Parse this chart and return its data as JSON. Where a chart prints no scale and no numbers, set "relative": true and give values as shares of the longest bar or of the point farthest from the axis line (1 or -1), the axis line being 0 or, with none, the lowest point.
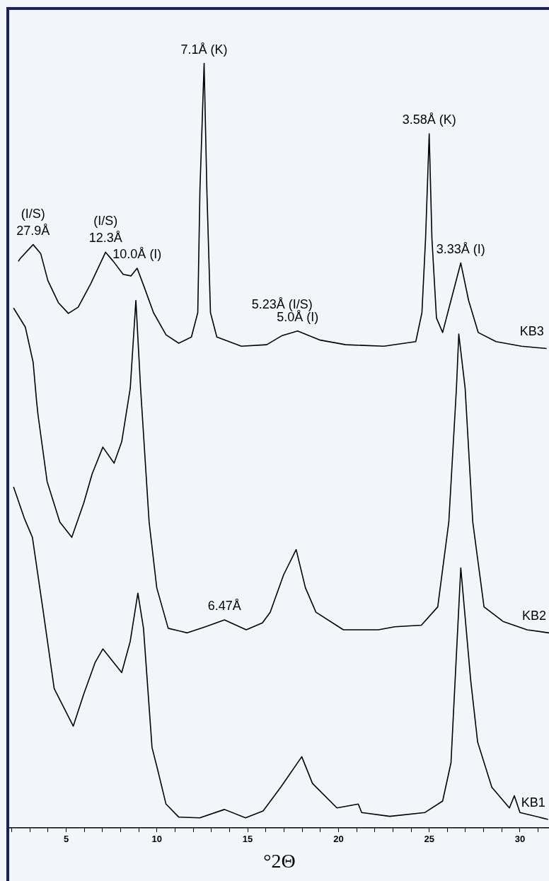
{
  "chart_data": {
    "type": "line",
    "relative": true,
    "xlabel": "°2Θ",
    "xlim": [
      1.9,
      31.6
    ],
    "xticks": [
      {
        "value": 2,
        "label": null
      },
      {
        "value": 3,
        "label": null
      },
      {
        "value": 4,
        "label": null
      },
      5,
      {
        "value": 6,
        "label": null
      },
      {
        "value": 7,
        "label": null
      },
      {
        "value": 8,
        "label": null
      },
      {
        "value": 9,
        "label": null
      },
      10,
      {
        "value": 11,
        "label": null
      },
      {
        "value": 12,
        "label": null
      },
      {
        "value": 13,
        "label": null
      },
      {
        "value": 14,
        "label": null
      },
      15,
      {
        "value": 16,
        "label": null
      },
      {
        "value": 17,
        "label": null
      },
      {
        "value": 18,
        "label": null
      },
      {
        "value": 19,
        "label": null
      },
      20,
      {
        "value": 21,
        "label": null
      },
      {
        "value": 22,
        "label": null
      },
      {
        "value": 23,
        "label": null
      },
      {
        "value": 24,
        "label": null
      },
      25,
      {
        "value": 26,
        "label": null
      },
      {
        "value": 27,
        "label": null
      },
      {
        "value": 28,
        "label": null
      },
      {
        "value": 29,
        "label": null
      },
      30,
      {
        "value": 31,
        "label": null
      }
    ],
    "grid": false,
    "legend": false,
    "marker": "none",
    "line_style": "solid",
    "series": [
      {
        "name": "KB3",
        "color": "#000000",
        "x": [
          2.36,
          2.48,
          3.18,
          3.6,
          3.99,
          4.57,
          5.12,
          5.66,
          6.36,
          7.17,
          7.6,
          8.14,
          8.57,
          8.91,
          9.26,
          9.81,
          10.5,
          11.2,
          11.9,
          12.25,
          12.37,
          12.6,
          12.75,
          12.95,
          13.3,
          14.65,
          16.05,
          16.9,
          17.75,
          19.0,
          20.4,
          22.5,
          24.26,
          24.6,
          24.8,
          25.0,
          25.15,
          25.4,
          25.74,
          26.2,
          26.74,
          27.17,
          27.7,
          28.68,
          30.08,
          31.47
        ],
        "values": [
          0.741,
          0.745,
          0.763,
          0.751,
          0.716,
          0.687,
          0.673,
          0.681,
          0.712,
          0.753,
          0.741,
          0.724,
          0.722,
          0.732,
          0.71,
          0.674,
          0.645,
          0.634,
          0.642,
          0.674,
          0.835,
          1.0,
          0.835,
          0.674,
          0.642,
          0.63,
          0.632,
          0.644,
          0.65,
          0.638,
          0.632,
          0.63,
          0.636,
          0.674,
          0.771,
          0.908,
          0.771,
          0.667,
          0.648,
          0.69,
          0.739,
          0.69,
          0.648,
          0.636,
          0.63,
          0.627
        ]
      },
      {
        "name": "KB2",
        "color": "#000000",
        "x": [
          2.1,
          2.75,
          3.18,
          3.37,
          3.45,
          3.95,
          4.65,
          5.31,
          5.97,
          6.43,
          7.02,
          7.64,
          8.06,
          8.53,
          8.84,
          9.1,
          9.57,
          9.99,
          10.62,
          11.67,
          12.67,
          13.72,
          14.92,
          15.81,
          16.24,
          16.98,
          17.67,
          18.18,
          18.76,
          20.27,
          22.2,
          23.1,
          24.57,
          25.47,
          26.08,
          26.5,
          26.63,
          26.98,
          27.4,
          28.02,
          29.07,
          30.39,
          31.6
        ],
        "values": [
          0.68,
          0.655,
          0.609,
          0.558,
          0.54,
          0.453,
          0.4,
          0.38,
          0.425,
          0.463,
          0.498,
          0.477,
          0.505,
          0.575,
          0.69,
          0.575,
          0.4,
          0.314,
          0.261,
          0.255,
          0.263,
          0.272,
          0.259,
          0.268,
          0.282,
          0.331,
          0.364,
          0.314,
          0.282,
          0.259,
          0.259,
          0.263,
          0.265,
          0.289,
          0.4,
          0.575,
          0.646,
          0.575,
          0.4,
          0.289,
          0.27,
          0.259,
          0.255
        ]
      },
      {
        "name": "KB1",
        "color": "#000000",
        "x": [
          2.1,
          2.71,
          3.14,
          3.76,
          4.34,
          5.39,
          5.97,
          6.59,
          7.02,
          8.06,
          8.53,
          8.95,
          9.26,
          9.73,
          10.04,
          10.5,
          11.2,
          12.36,
          13.72,
          14.88,
          15.85,
          16.82,
          17.98,
          18.57,
          19.92,
          21.09,
          21.28,
          22.83,
          24.77,
          25.74,
          26.2,
          26.5,
          26.74,
          27.29,
          27.67,
          28.45,
          29.42,
          29.69,
          30.0,
          31.55
        ],
        "values": [
          0.446,
          0.404,
          0.38,
          0.279,
          0.182,
          0.133,
          0.175,
          0.216,
          0.234,
          0.203,
          0.244,
          0.307,
          0.261,
          0.105,
          0.076,
          0.031,
          0.014,
          0.013,
          0.024,
          0.013,
          0.022,
          0.053,
          0.093,
          0.058,
          0.026,
          0.031,
          0.02,
          0.015,
          0.02,
          0.035,
          0.085,
          0.227,
          0.34,
          0.192,
          0.112,
          0.053,
          0.026,
          0.042,
          0.02,
          0.011
        ]
      }
    ],
    "annotations": [
      {
        "text": "27.9Å",
        "x": 3.18,
        "y": 0.763
      },
      {
        "text": "(I/S)",
        "x": 3.18,
        "y": 0.763
      },
      {
        "text": "12.3Å",
        "x": 7.17,
        "y": 0.753
      },
      {
        "text": "(I/S)",
        "x": 7.17,
        "y": 0.753
      },
      {
        "text": "10.0Å (I)",
        "x": 8.91,
        "y": 0.732
      },
      {
        "text": "7.1Å (K)",
        "x": 12.6,
        "y": 1.0
      },
      {
        "text": "6.47Å",
        "x": 13.72,
        "y": 0.272
      },
      {
        "text": "5.0Å (I)",
        "x": 17.75,
        "y": 0.65
      },
      {
        "text": "5.23Å (I/S)",
        "x": 16.9,
        "y": 0.644
      },
      {
        "text": "3.58Å (K)",
        "x": 25.0,
        "y": 0.908
      },
      {
        "text": "3.33Å (I)",
        "x": 26.74,
        "y": 0.739
      }
    ]
  }
}
